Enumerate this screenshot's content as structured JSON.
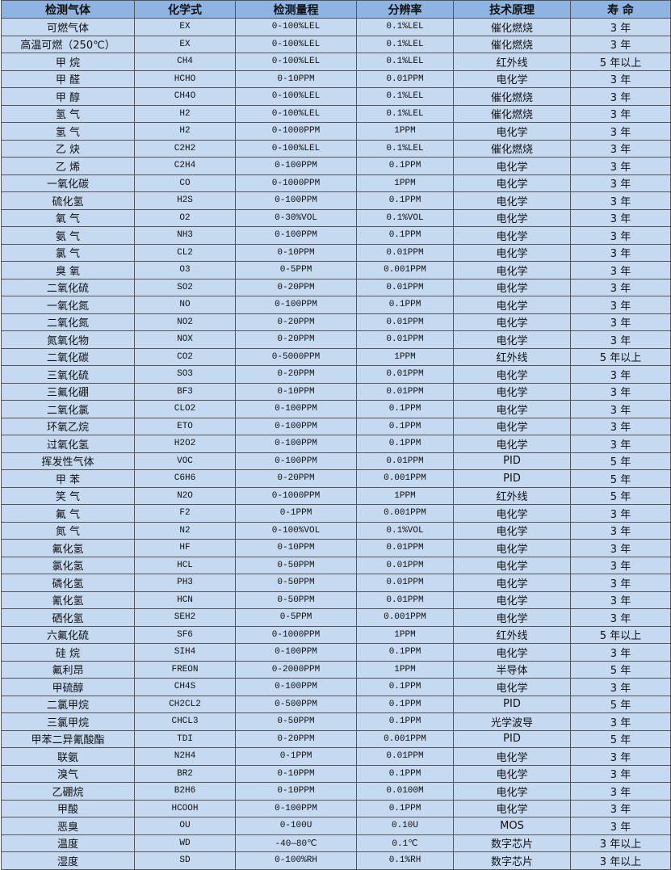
{
  "header": [
    "检测气体",
    "化学式",
    "检测量程",
    "分辨率",
    "技术原理",
    "寿 命"
  ],
  "rows": [
    [
      "可燃气体",
      "EX",
      "0-100%LEL",
      "0.1%LEL",
      "催化燃烧",
      "3 年"
    ],
    [
      "高温可燃（250℃）",
      "EX",
      "0-100%LEL",
      "0.1%LEL",
      "催化燃烧",
      "3 年"
    ],
    [
      "甲 烷",
      "CH4",
      "0-100%LEL",
      "0.1%LEL",
      "红外线",
      "5 年以上"
    ],
    [
      "甲 醛",
      "HCHO",
      "0-10PPM",
      "0.01PPM",
      "电化学",
      "3 年"
    ],
    [
      "甲 醇",
      "CH4O",
      "0-100%LEL",
      "0.1%LEL",
      "催化燃烧",
      "3 年"
    ],
    [
      "氢 气",
      "H2",
      "0-100%LEL",
      "0.1%LEL",
      "催化燃烧",
      "3 年"
    ],
    [
      "氢 气",
      "H2",
      "0-1000PPM",
      "1PPM",
      "电化学",
      "3 年"
    ],
    [
      "乙 炔",
      "C2H2",
      "0-100%LEL",
      "0.1%LEL",
      "催化燃烧",
      "3 年"
    ],
    [
      "乙 烯",
      "C2H4",
      "0-100PPM",
      "0.1PPM",
      "电化学",
      "3 年"
    ],
    [
      "一氧化碳",
      "CO",
      "0-1000PPM",
      "1PPM",
      "电化学",
      "3 年"
    ],
    [
      "硫化氢",
      "H2S",
      "0-100PPM",
      "0.1PPM",
      "电化学",
      "3 年"
    ],
    [
      "氧 气",
      "O2",
      "0-30%VOL",
      "0.1%VOL",
      "电化学",
      "3 年"
    ],
    [
      "氨 气",
      "NH3",
      "0-100PPM",
      "0.1PPM",
      "电化学",
      "3 年"
    ],
    [
      "氯 气",
      "CL2",
      "0-10PPM",
      "0.01PPM",
      "电化学",
      "3 年"
    ],
    [
      "臭 氧",
      "O3",
      "0-5PPM",
      "0.001PPM",
      "电化学",
      "3 年"
    ],
    [
      "二氧化硫",
      "SO2",
      "0-20PPM",
      "0.01PPM",
      "电化学",
      "3 年"
    ],
    [
      "一氧化氮",
      "NO",
      "0-100PPM",
      "0.1PPM",
      "电化学",
      "3 年"
    ],
    [
      "二氧化氮",
      "NO2",
      "0-20PPM",
      "0.01PPM",
      "电化学",
      "3 年"
    ],
    [
      "氮氧化物",
      "NOX",
      "0-20PPM",
      "0.01PPM",
      "电化学",
      "3 年"
    ],
    [
      "二氧化碳",
      "CO2",
      "0-5000PPM",
      "1PPM",
      "红外线",
      "5 年以上"
    ],
    [
      "三氧化硫",
      "SO3",
      "0-20PPM",
      "0.01PPM",
      "电化学",
      "3 年"
    ],
    [
      "三氟化硼",
      "BF3",
      "0-10PPM",
      "0.01PPM",
      "电化学",
      "3 年"
    ],
    [
      "二氧化氯",
      "CLO2",
      "0-100PPM",
      "0.1PPM",
      "电化学",
      "3 年"
    ],
    [
      "环氧乙烷",
      "ETO",
      "0-100PPM",
      "0.1PPM",
      "电化学",
      "3 年"
    ],
    [
      "过氧化氢",
      "H2O2",
      "0-100PPM",
      "0.1PPM",
      "电化学",
      "3 年"
    ],
    [
      "挥发性气体",
      "VOC",
      "0-100PPM",
      "0.01PPM",
      "PID",
      "5 年"
    ],
    [
      "甲 苯",
      "C6H6",
      "0-20PPM",
      "0.001PPM",
      "PID",
      "5 年"
    ],
    [
      "笑 气",
      "N2O",
      "0-1000PPM",
      "1PPM",
      "红外线",
      "5 年"
    ],
    [
      "氟 气",
      "F2",
      "0-1PPM",
      "0.001PPM",
      "电化学",
      "3 年"
    ],
    [
      "氮 气",
      "N2",
      "0-100%VOL",
      "0.1%VOL",
      "电化学",
      "3 年"
    ],
    [
      "氟化氢",
      "HF",
      "0-10PPM",
      "0.01PPM",
      "电化学",
      "3 年"
    ],
    [
      "氯化氢",
      "HCL",
      "0-50PPM",
      "0.01PPM",
      "电化学",
      "3 年"
    ],
    [
      "磷化氢",
      "PH3",
      "0-50PPM",
      "0.01PPM",
      "电化学",
      "3 年"
    ],
    [
      "氰化氢",
      "HCN",
      "0-50PPM",
      "0.01PPM",
      "电化学",
      "3 年"
    ],
    [
      "硒化氢",
      "SEH2",
      "0-5PPM",
      "0.001PPM",
      "电化学",
      "3 年"
    ],
    [
      "六氟化硫",
      "SF6",
      "0-1000PPM",
      "1PPM",
      "红外线",
      "5 年以上"
    ],
    [
      "硅 烷",
      "SIH4",
      "0-100PPM",
      "0.1PPM",
      "电化学",
      "3 年"
    ],
    [
      "氟利昂",
      "FREON",
      "0-2000PPM",
      "1PPM",
      "半导体",
      "5 年"
    ],
    [
      "甲硫醇",
      "CH4S",
      "0-100PPM",
      "0.1PPM",
      "电化学",
      "3 年"
    ],
    [
      "二氯甲烷",
      "CH2CL2",
      "0-500PPM",
      "0.1PPM",
      "PID",
      "5 年"
    ],
    [
      "三氯甲烷",
      "CHCL3",
      "0-50PPM",
      "0.1PPM",
      "光学波导",
      "3 年"
    ],
    [
      "甲苯二异氰酸酯",
      "TDI",
      "0-20PPM",
      "0.001PPM",
      "PID",
      "5 年"
    ],
    [
      "联氨",
      "N2H4",
      "0-1PPM",
      "0.01PPM",
      "电化学",
      "3 年"
    ],
    [
      "溴气",
      "BR2",
      "0-10PPM",
      "0.1PPM",
      "电化学",
      "3 年"
    ],
    [
      "乙硼烷",
      "B2H6",
      "0-10PPM",
      "0.0100M",
      "电化学",
      "3 年"
    ],
    [
      "甲酸",
      "HCOOH",
      "0-100PPM",
      "0.1PPM",
      "电化学",
      "3 年"
    ],
    [
      "恶臭",
      "OU",
      "0-100U",
      "0.10U",
      "MOS",
      "3 年"
    ],
    [
      "温度",
      "WD",
      "-40—80℃",
      "0.1℃",
      "数字芯片",
      "3 年以上"
    ],
    [
      "湿度",
      "SD",
      "0-100%RH",
      "0.1%RH",
      "数字芯片",
      "3 年以上"
    ]
  ],
  "colors": {
    "header_bg": "#8db4e2",
    "row_bg": "#c5d9f1",
    "border": "#555555"
  }
}
